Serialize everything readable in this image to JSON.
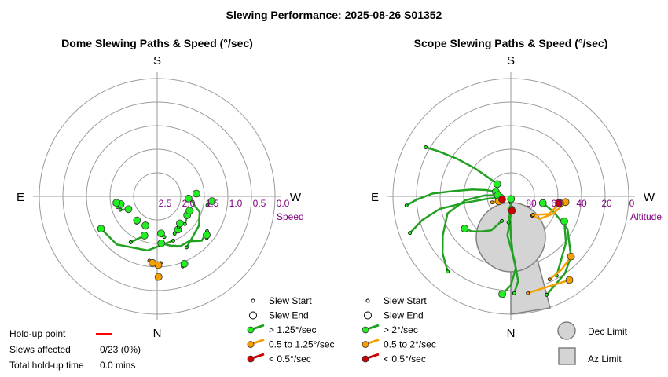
{
  "page": {
    "title": "Slewing Performance: 2025-08-26 S01352"
  },
  "colors": {
    "ring": "#9a9a9a",
    "fast": "#22a022",
    "fast_fill": "#22ee22",
    "medium": "#f5a000",
    "slow": "#cc0000",
    "limit_fill": "#d4d4d4",
    "limit_stroke": "#808080",
    "tick_label": "#800080"
  },
  "holdup": {
    "point_label": "Hold-up point",
    "slews_label": "Slews affected",
    "slews_value": "0/23 (0%)",
    "time_label": "Total hold-up time",
    "time_value": "0.0 mins"
  },
  "chart_data": [
    {
      "type": "scatter",
      "title": "Dome Slewing Paths & Speed (°/sec)",
      "compass": {
        "top": "S",
        "bottom": "N",
        "left": "E",
        "right": "W"
      },
      "radial_label": "Speed",
      "radial_ticks": [
        "2.5",
        "2.0",
        "1.5",
        "1.0",
        "0.5",
        "0.0"
      ],
      "rlim": [
        0,
        3
      ],
      "legend": [
        {
          "label": "Slew Start",
          "marker": "start"
        },
        {
          "label": "Slew End",
          "marker": "end"
        },
        {
          "label": "> 1.25°/sec",
          "speed": "fast"
        },
        {
          "label": "0.5 to 1.25°/sec",
          "speed": "medium"
        },
        {
          "label": "< 0.5°/sec",
          "speed": "slow"
        }
      ],
      "slews": [
        {
          "speed": "fast",
          "points": [
            [
              200,
              2.2
            ],
            [
              170,
              2.0
            ],
            [
              140,
              1.8
            ],
            [
              120,
              1.75
            ]
          ]
        },
        {
          "speed": "fast",
          "points": [
            [
              150,
              2.05
            ],
            [
              155,
              2.2
            ],
            [
              162,
              2.35
            ]
          ]
        },
        {
          "speed": "fast",
          "points": [
            [
              105,
              2.35
            ],
            [
              102,
              2.45
            ]
          ]
        },
        {
          "speed": "fast",
          "points": [
            [
              110,
              2.4
            ],
            [
              112,
              2.5
            ],
            [
              114,
              2.6
            ]
          ]
        },
        {
          "speed": "fast",
          "points": [
            [
              100,
              2.3
            ],
            [
              99,
              2.35
            ]
          ]
        },
        {
          "speed": "fast",
          "points": [
            [
              210,
              1.9
            ],
            [
              235,
              2.1
            ],
            [
              250,
              2.25
            ],
            [
              255,
              2.4
            ],
            [
              262,
              2.5
            ],
            [
              266,
              2.6
            ]
          ]
        },
        {
          "speed": "fast",
          "points": [
            [
              225,
              2.4
            ],
            [
              238,
              2.5
            ]
          ]
        },
        {
          "speed": "fast",
          "points": [
            [
              200,
              1.5
            ],
            [
              202,
              1.55
            ]
          ]
        },
        {
          "speed": "fast",
          "points": [
            [
              235,
              1.85
            ],
            [
              225,
              1.8
            ],
            [
              215,
              2.0
            ],
            [
              205,
              2.0
            ],
            [
              195,
              2.1
            ],
            [
              185,
              2.2
            ]
          ]
        },
        {
          "speed": "fast",
          "points": [
            [
              230,
              1.75
            ],
            [
              232,
              1.8
            ]
          ]
        },
        {
          "speed": "fast",
          "points": [
            [
              205,
              2.35
            ],
            [
              212,
              2.4
            ]
          ]
        },
        {
          "speed": "fast",
          "points": [
            [
              272,
              2.35
            ],
            [
              274,
              2.4
            ]
          ]
        },
        {
          "speed": "fast",
          "points": [
            [
              190,
              2.35
            ],
            [
              188,
              2.4
            ],
            [
              186,
              2.45
            ]
          ]
        },
        {
          "speed": "fast",
          "points": [
            [
              260,
              2.1
            ],
            [
              265,
              2.0
            ]
          ]
        },
        {
          "speed": "fast",
          "points": [
            [
              215,
              2.45
            ],
            [
              220,
              2.5
            ]
          ]
        },
        {
          "speed": "fast",
          "points": [
            [
              248,
              2.45
            ],
            [
              246,
              2.5
            ]
          ]
        },
        {
          "speed": "medium",
          "points": [
            [
              183,
              1.7
            ],
            [
              181,
              1.65
            ]
          ]
        },
        {
          "speed": "medium",
          "points": [
            [
              173,
              1.75
            ],
            [
              176,
              1.7
            ]
          ]
        },
        {
          "speed": "medium",
          "points": [
            [
              180,
              1.3
            ],
            [
              181,
              1.35
            ]
          ]
        },
        {
          "speed": "fast",
          "points": [
            [
              142,
              2.55
            ],
            [
              140,
              2.6
            ]
          ]
        },
        {
          "speed": "fast",
          "points": [
            [
              160,
              2.55
            ],
            [
              158,
              2.6
            ]
          ]
        }
      ]
    },
    {
      "type": "scatter",
      "title": "Scope Slewing Paths & Speed (°/sec)",
      "compass": {
        "top": "S",
        "bottom": "N",
        "left": "E",
        "right": "W"
      },
      "radial_label": "Altitude",
      "radial_ticks": [
        "80",
        "60",
        "40",
        "20",
        "0"
      ],
      "rlim": [
        0,
        90
      ],
      "legend": [
        {
          "label": "Slew Start",
          "marker": "start"
        },
        {
          "label": "Slew End",
          "marker": "end"
        },
        {
          "label": "> 2°/sec",
          "speed": "fast"
        },
        {
          "label": "0.5 to 2°/sec",
          "speed": "medium"
        },
        {
          "label": "< 0.5°/sec",
          "speed": "slow"
        }
      ],
      "limits": [
        {
          "label": "Dec Limit",
          "shape": "circle"
        },
        {
          "label": "Az Limit",
          "shape": "square"
        }
      ],
      "slews": [
        {
          "speed": "fast",
          "points": [
            [
              180,
              85
            ],
            [
              178,
              75
            ],
            [
              180,
              60
            ],
            [
              182,
              45
            ],
            [
              184,
              35
            ],
            [
              180,
              22
            ],
            [
              175,
              15
            ]
          ]
        },
        {
          "speed": "fast",
          "points": [
            [
              182,
              16
            ],
            [
              185,
              25
            ],
            [
              183,
              42
            ],
            [
              175,
              60
            ],
            [
              178,
              70
            ],
            [
              182,
              80
            ]
          ]
        },
        {
          "speed": "fast",
          "points": [
            [
              160,
              70
            ],
            [
              150,
              60
            ],
            [
              140,
              55
            ],
            [
              132,
              50
            ],
            [
              125,
              47
            ]
          ]
        },
        {
          "speed": "fast",
          "points": [
            [
              175,
              70
            ],
            [
              180,
              82
            ],
            [
              185,
              88
            ]
          ]
        },
        {
          "speed": "fast",
          "points": [
            [
              95,
              10
            ],
            [
              92,
              18
            ],
            [
              88,
              30
            ],
            [
              85,
              45
            ],
            [
              80,
              60
            ],
            [
              76,
              70
            ],
            [
              73,
              78
            ]
          ]
        },
        {
          "speed": "fast",
          "points": [
            [
              60,
              15
            ],
            [
              58,
              25
            ],
            [
              55,
              40
            ],
            [
              52,
              55
            ],
            [
              50,
              68
            ],
            [
              48,
              76
            ]
          ]
        },
        {
          "speed": "fast",
          "points": [
            [
              110,
              8
            ],
            [
              105,
              20
            ],
            [
              100,
              35
            ],
            [
              98,
              55
            ],
            [
              96,
              72
            ],
            [
              95,
              82
            ]
          ]
        },
        {
          "speed": "fast",
          "points": [
            [
              140,
              15
            ],
            [
              130,
              22
            ],
            [
              120,
              30
            ],
            [
              105,
              40
            ],
            [
              95,
              55
            ],
            [
              88,
              70
            ],
            [
              85,
              80
            ]
          ]
        },
        {
          "speed": "fast",
          "points": [
            [
              200,
              10
            ],
            [
              215,
              18
            ],
            [
              225,
              25
            ],
            [
              240,
              40
            ],
            [
              250,
              55
            ],
            [
              258,
              65
            ]
          ]
        },
        {
          "speed": "fast",
          "points": [
            [
              210,
              20
            ],
            [
              230,
              35
            ],
            [
              245,
              45
            ]
          ]
        },
        {
          "speed": "medium",
          "points": [
            [
              228,
              68
            ],
            [
              232,
              62
            ],
            [
              248,
              55
            ],
            [
              260,
              50
            ],
            [
              264,
              48
            ]
          ]
        },
        {
          "speed": "medium",
          "points": [
            [
              205,
              20
            ],
            [
              215,
              22
            ],
            [
              225,
              25
            ]
          ]
        },
        {
          "speed": "medium",
          "points": [
            [
              230,
              68
            ],
            [
              245,
              58
            ],
            [
              262,
              52
            ]
          ]
        },
        {
          "speed": "medium",
          "points": [
            [
              190,
              15
            ],
            [
              205,
              15
            ],
            [
              215,
              12
            ]
          ]
        },
        {
          "speed": "medium",
          "points": [
            [
              108,
              75
            ],
            [
              112,
              80
            ]
          ]
        },
        {
          "speed": "slow",
          "points": [
            [
              182,
              80
            ],
            [
              184,
              79
            ]
          ]
        },
        {
          "speed": "slow",
          "points": [
            [
              107,
              82
            ],
            [
              109,
              83
            ]
          ]
        },
        {
          "speed": "slow",
          "points": [
            [
              260,
              52
            ],
            [
              262,
              53
            ]
          ]
        }
      ]
    }
  ]
}
